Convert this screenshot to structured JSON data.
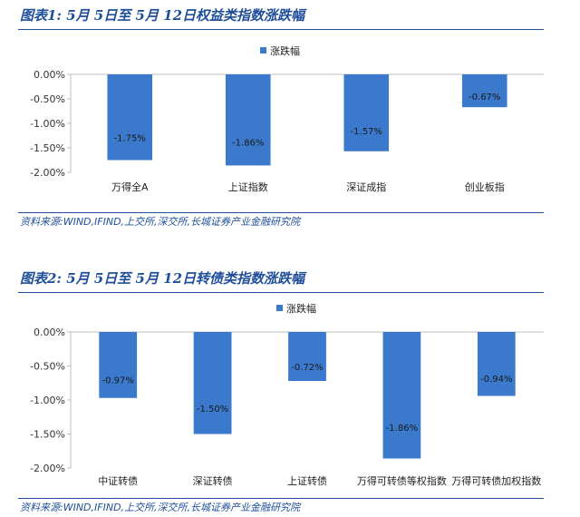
{
  "figure1": {
    "title": "图表1:  5月 5日至 5月 12日权益类指数涨跌幅",
    "source": "资料来源:WIND,IFIND,上交所,深交所,长城证券产业金融研究院"
  },
  "figure2": {
    "title": "图表2:  5月 5日至 5月 12日转债类指数涨跌幅",
    "source": "资料来源:WIND,IFIND,上交所,深交所,长城证券产业金融研究院"
  },
  "colors": {
    "bar": "#3a79cc",
    "accent": "#1f4e9a",
    "axis": "#bfbfbf"
  },
  "chart_data": [
    {
      "type": "bar",
      "categories": [
        "万得全A",
        "上证指数",
        "深证成指",
        "创业板指"
      ],
      "series": [
        {
          "name": "涨跌幅",
          "values": [
            -1.75,
            -1.86,
            -1.57,
            -0.67
          ]
        }
      ],
      "value_labels": [
        "-1.75%",
        "-1.86%",
        "-1.57%",
        "-0.67%"
      ],
      "y_ticks": [
        "0.00%",
        "-0.50%",
        "-1.00%",
        "-1.50%",
        "-2.00%"
      ],
      "ylim": [
        -2.0,
        0.0
      ],
      "legend": "top-center",
      "grid": false
    },
    {
      "type": "bar",
      "categories": [
        "中证转债",
        "深证转债",
        "上证转债",
        "万得可转债等权指数",
        "万得可转债加权指数"
      ],
      "series": [
        {
          "name": "涨跌幅",
          "values": [
            -0.97,
            -1.5,
            -0.72,
            -1.86,
            -0.94
          ]
        }
      ],
      "value_labels": [
        "-0.97%",
        "-1.50%",
        "-0.72%",
        "-1.86%",
        "-0.94%"
      ],
      "y_ticks": [
        "0.00%",
        "-0.50%",
        "-1.00%",
        "-1.50%",
        "-2.00%"
      ],
      "ylim": [
        -2.0,
        0.0
      ],
      "legend": "top-center",
      "grid": false
    }
  ]
}
